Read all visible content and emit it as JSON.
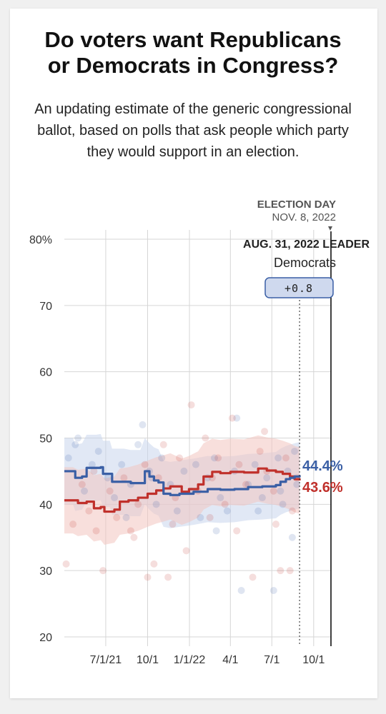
{
  "title_line1": "Do voters want Republicans",
  "title_line2": "or Democrats in Congress?",
  "subtitle": "An updating estimate of the generic congressional ballot, based on polls that ask people which party they would support in an election.",
  "election_day": {
    "label": "ELECTION DAY",
    "date": "NOV. 8, 2022"
  },
  "leader": {
    "label": "AUG. 31, 2022 LEADER",
    "party": "Democrats",
    "margin": "+0.8"
  },
  "colors": {
    "dem": "#3a5fa5",
    "rep": "#c0302b",
    "dem_light": "#c9d6ec",
    "rep_light": "#f2c4bf"
  },
  "chart_data": {
    "type": "line",
    "title": "",
    "xlabel": "",
    "ylabel": "",
    "ylim": [
      20,
      80
    ],
    "yticks": [
      {
        "value": 80,
        "label": "80%"
      },
      {
        "value": 70,
        "label": "70"
      },
      {
        "value": 60,
        "label": "60"
      },
      {
        "value": 50,
        "label": "50"
      },
      {
        "value": 40,
        "label": "40"
      },
      {
        "value": 30,
        "label": "30"
      },
      {
        "value": 20,
        "label": "20"
      }
    ],
    "xticks": [
      {
        "date": "2021-07-01",
        "label": "7/1/21"
      },
      {
        "date": "2021-10-01",
        "label": "10/1"
      },
      {
        "date": "2022-01-01",
        "label": "1/1/22"
      },
      {
        "date": "2022-04-01",
        "label": "4/1"
      },
      {
        "date": "2022-07-01",
        "label": "7/1"
      },
      {
        "date": "2022-10-01",
        "label": "10/1"
      }
    ],
    "x_range": [
      "2021-04-01",
      "2022-11-08"
    ],
    "current_date": "2022-08-31",
    "election_date": "2022-11-08",
    "series": [
      {
        "party": "dem",
        "end_label": "44.4%",
        "values": [
          [
            "2021-04-01",
            45.0
          ],
          [
            "2021-04-20",
            45.0
          ],
          [
            "2021-04-25",
            44.0
          ],
          [
            "2021-05-10",
            44.2
          ],
          [
            "2021-05-20",
            45.5
          ],
          [
            "2021-06-10",
            45.5
          ],
          [
            "2021-06-20",
            45.6
          ],
          [
            "2021-06-25",
            44.6
          ],
          [
            "2021-07-10",
            44.6
          ],
          [
            "2021-07-15",
            43.4
          ],
          [
            "2021-08-10",
            43.4
          ],
          [
            "2021-08-25",
            43.2
          ],
          [
            "2021-09-15",
            43.2
          ],
          [
            "2021-09-25",
            45.0
          ],
          [
            "2021-10-05",
            44.2
          ],
          [
            "2021-10-15",
            43.6
          ],
          [
            "2021-10-25",
            43.3
          ],
          [
            "2021-11-05",
            41.6
          ],
          [
            "2021-11-20",
            41.4
          ],
          [
            "2021-12-10",
            41.6
          ],
          [
            "2022-01-10",
            41.9
          ],
          [
            "2022-02-10",
            42.3
          ],
          [
            "2022-03-10",
            42.2
          ],
          [
            "2022-04-10",
            42.3
          ],
          [
            "2022-05-10",
            42.6
          ],
          [
            "2022-06-10",
            42.7
          ],
          [
            "2022-07-10",
            42.9
          ],
          [
            "2022-07-20",
            43.4
          ],
          [
            "2022-08-01",
            43.8
          ],
          [
            "2022-08-10",
            44.0
          ],
          [
            "2022-08-20",
            44.2
          ],
          [
            "2022-08-31",
            44.4
          ]
        ]
      },
      {
        "party": "rep",
        "end_label": "43.6%",
        "values": [
          [
            "2021-04-01",
            40.6
          ],
          [
            "2021-04-20",
            40.6
          ],
          [
            "2021-05-01",
            40.2
          ],
          [
            "2021-05-20",
            40.4
          ],
          [
            "2021-06-05",
            39.4
          ],
          [
            "2021-06-20",
            39.6
          ],
          [
            "2021-06-28",
            38.9
          ],
          [
            "2021-07-20",
            39.2
          ],
          [
            "2021-08-01",
            40.4
          ],
          [
            "2021-08-20",
            40.6
          ],
          [
            "2021-09-10",
            41.0
          ],
          [
            "2021-10-01",
            41.6
          ],
          [
            "2021-10-20",
            42.1
          ],
          [
            "2021-11-05",
            42.4
          ],
          [
            "2021-11-20",
            42.7
          ],
          [
            "2021-12-15",
            41.9
          ],
          [
            "2021-12-31",
            42.3
          ],
          [
            "2022-01-20",
            43.0
          ],
          [
            "2022-02-01",
            44.2
          ],
          [
            "2022-02-20",
            44.9
          ],
          [
            "2022-03-10",
            44.7
          ],
          [
            "2022-04-01",
            44.9
          ],
          [
            "2022-05-01",
            44.8
          ],
          [
            "2022-06-01",
            45.4
          ],
          [
            "2022-06-20",
            45.1
          ],
          [
            "2022-07-10",
            44.9
          ],
          [
            "2022-07-25",
            44.6
          ],
          [
            "2022-08-10",
            44.2
          ],
          [
            "2022-08-20",
            43.8
          ],
          [
            "2022-08-31",
            43.6
          ]
        ]
      }
    ],
    "polls_dem": [
      [
        "2021-04-10",
        47
      ],
      [
        "2021-04-25",
        49
      ],
      [
        "2021-05-15",
        42
      ],
      [
        "2021-06-01",
        46
      ],
      [
        "2021-06-15",
        48
      ],
      [
        "2021-07-05",
        44
      ],
      [
        "2021-07-20",
        41
      ],
      [
        "2021-08-05",
        46
      ],
      [
        "2021-08-25",
        43
      ],
      [
        "2021-09-10",
        49
      ],
      [
        "2021-09-20",
        52
      ],
      [
        "2021-10-05",
        45
      ],
      [
        "2021-10-20",
        40
      ],
      [
        "2021-11-01",
        47
      ],
      [
        "2021-11-20",
        43
      ],
      [
        "2021-12-05",
        39
      ],
      [
        "2021-12-20",
        45
      ],
      [
        "2022-01-05",
        42
      ],
      [
        "2022-01-25",
        38
      ],
      [
        "2022-02-10",
        44
      ],
      [
        "2022-02-25",
        47
      ],
      [
        "2022-03-10",
        41
      ],
      [
        "2022-03-25",
        39
      ],
      [
        "2022-04-10",
        45
      ],
      [
        "2022-04-25",
        27
      ],
      [
        "2022-05-10",
        43
      ],
      [
        "2022-05-25",
        46
      ],
      [
        "2022-06-10",
        41
      ],
      [
        "2022-06-20",
        44
      ],
      [
        "2022-07-05",
        27
      ],
      [
        "2022-07-15",
        47
      ],
      [
        "2022-07-25",
        40
      ],
      [
        "2022-08-05",
        45
      ],
      [
        "2022-08-15",
        35
      ],
      [
        "2022-08-25",
        43
      ],
      [
        "2021-05-01",
        50
      ],
      [
        "2021-08-15",
        38
      ],
      [
        "2021-10-10",
        44
      ],
      [
        "2022-01-15",
        46
      ],
      [
        "2022-03-01",
        36
      ],
      [
        "2022-04-15",
        53
      ],
      [
        "2022-06-01",
        39
      ],
      [
        "2022-07-20",
        42
      ],
      [
        "2022-08-20",
        48
      ]
    ],
    "polls_rep": [
      [
        "2021-04-05",
        31
      ],
      [
        "2021-04-20",
        37
      ],
      [
        "2021-05-10",
        43
      ],
      [
        "2021-05-25",
        39
      ],
      [
        "2021-06-10",
        36
      ],
      [
        "2021-06-25",
        30
      ],
      [
        "2021-07-10",
        42
      ],
      [
        "2021-07-25",
        38
      ],
      [
        "2021-08-10",
        44
      ],
      [
        "2021-08-25",
        36
      ],
      [
        "2021-09-10",
        40
      ],
      [
        "2021-09-25",
        46
      ],
      [
        "2021-10-01",
        29
      ],
      [
        "2021-10-15",
        31
      ],
      [
        "2021-10-25",
        44
      ],
      [
        "2021-11-05",
        49
      ],
      [
        "2021-11-15",
        29
      ],
      [
        "2021-11-25",
        37
      ],
      [
        "2021-12-10",
        47
      ],
      [
        "2021-12-25",
        33
      ],
      [
        "2022-01-05",
        55
      ],
      [
        "2022-01-20",
        42
      ],
      [
        "2022-02-05",
        50
      ],
      [
        "2022-02-20",
        44
      ],
      [
        "2022-03-05",
        47
      ],
      [
        "2022-03-20",
        40
      ],
      [
        "2022-04-05",
        53
      ],
      [
        "2022-04-20",
        46
      ],
      [
        "2022-05-05",
        43
      ],
      [
        "2022-05-20",
        29
      ],
      [
        "2022-06-05",
        48
      ],
      [
        "2022-06-20",
        45
      ],
      [
        "2022-07-05",
        42
      ],
      [
        "2022-07-20",
        30
      ],
      [
        "2022-08-01",
        47
      ],
      [
        "2022-08-15",
        39
      ],
      [
        "2022-08-25",
        44
      ],
      [
        "2021-06-05",
        45
      ],
      [
        "2021-09-01",
        35
      ],
      [
        "2021-12-01",
        41
      ],
      [
        "2022-02-15",
        38
      ],
      [
        "2022-04-15",
        36
      ],
      [
        "2022-06-15",
        51
      ],
      [
        "2022-08-10",
        30
      ],
      [
        "2022-07-10",
        37
      ]
    ]
  }
}
